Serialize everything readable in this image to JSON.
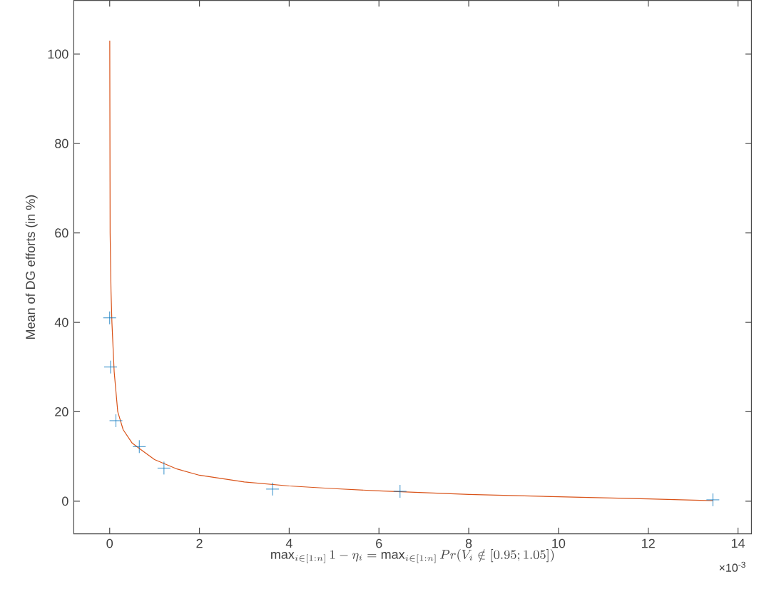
{
  "chart_data": {
    "type": "scatter",
    "xlabel": "\\max_{i\\in[1:n]} 1-\\eta_i = \\max_{i\\in[1:n]} Pr(V_i \\notin [0.95;1.05])",
    "ylabel": "Mean of DG efforts (in %)",
    "annotations": [
      "×10$^{-3}$"
    ],
    "xlim": [
      -0.8,
      14.3
    ],
    "ylim": [
      -7.3,
      112
    ],
    "xticks": [
      0,
      2,
      4,
      6,
      8,
      10,
      12,
      14
    ],
    "yticks": [
      0,
      20,
      40,
      60,
      80,
      100
    ],
    "grid": false,
    "series": [
      {
        "marker": "cross",
        "color": "#0072bd",
        "x": [
          0,
          0.02,
          0.14,
          0.66,
          1.21,
          3.63,
          6.47,
          13.44
        ],
        "values": [
          41,
          30,
          18,
          12.2,
          7.4,
          2.7,
          2.2,
          0.3
        ]
      },
      {
        "type": "line",
        "marker": "none",
        "color": "#d95319",
        "x": [
          0.002,
          0.01,
          0.03,
          0.05,
          0.1,
          0.18,
          0.3,
          0.5,
          0.7,
          1,
          1.5,
          2,
          3,
          4,
          5,
          6,
          7,
          8,
          10,
          12,
          13.44
        ],
        "values": [
          103,
          60,
          47,
          40,
          29,
          20,
          16,
          13,
          11.5,
          9.3,
          7.2,
          5.8,
          4.3,
          3.4,
          2.8,
          2.3,
          1.9,
          1.5,
          1.0,
          0.5,
          0.1
        ]
      }
    ]
  }
}
